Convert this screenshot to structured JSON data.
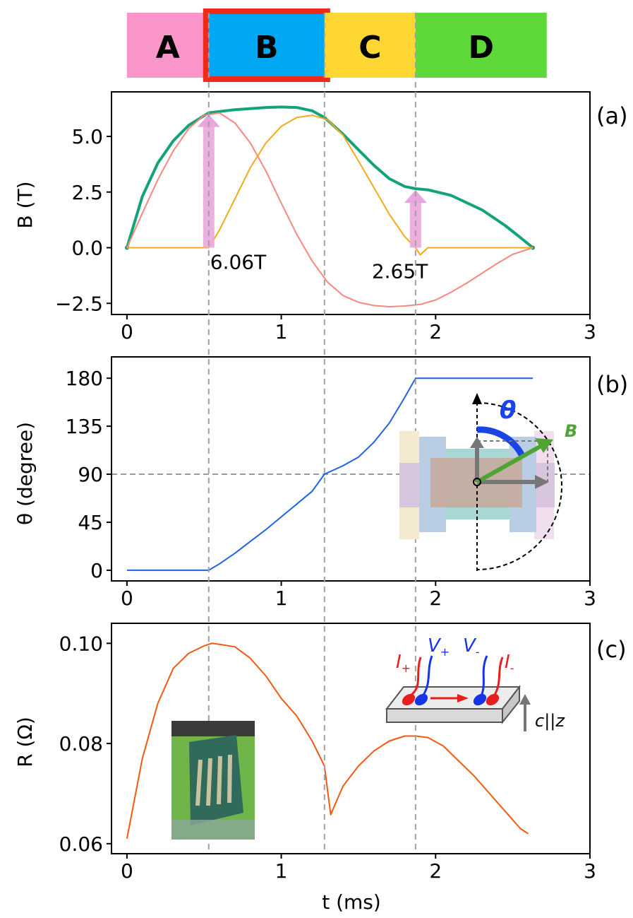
{
  "phase_bar": {
    "segments": [
      {
        "label": "A",
        "color": "#f995c9",
        "t_start": 0,
        "t_end": 0.53
      },
      {
        "label": "B",
        "color": "#00a8f3",
        "t_start": 0.53,
        "t_end": 1.28,
        "highlight": "#ee2a1a"
      },
      {
        "label": "C",
        "color": "#fed733",
        "t_start": 1.28,
        "t_end": 1.87
      },
      {
        "label": "D",
        "color": "#5fd83a",
        "t_start": 1.87,
        "t_end": 2.72
      }
    ]
  },
  "vlines_t": [
    0.53,
    1.28,
    1.87
  ],
  "xaxis_label": "t (ms)",
  "chart_data": [
    {
      "type": "line",
      "panel": "(a)",
      "ylabel": "B (T)",
      "xlim": [
        -0.1,
        3.0
      ],
      "ylim": [
        -3.0,
        7.0
      ],
      "xticks": [
        "0",
        "1",
        "2",
        "3"
      ],
      "yticks": [
        "5.0",
        "2.5",
        "0.0",
        "−2.5"
      ],
      "series": [
        {
          "color": "#13a37a",
          "x": [
            0,
            0.1,
            0.2,
            0.3,
            0.4,
            0.53,
            0.7,
            0.9,
            1.0,
            1.1,
            1.2,
            1.28,
            1.4,
            1.5,
            1.6,
            1.7,
            1.8,
            1.87,
            1.95,
            2.1,
            2.3,
            2.45,
            2.55,
            2.63
          ],
          "y": [
            0,
            2.3,
            3.8,
            4.8,
            5.5,
            6.06,
            6.2,
            6.3,
            6.32,
            6.3,
            6.15,
            5.85,
            5.1,
            4.4,
            3.7,
            3.1,
            2.75,
            2.65,
            2.6,
            2.35,
            1.7,
            1.0,
            0.45,
            0
          ]
        },
        {
          "color": "#f7877f",
          "x": [
            0,
            0.1,
            0.2,
            0.3,
            0.4,
            0.5,
            0.6,
            0.7,
            0.8,
            0.9,
            1.0,
            1.1,
            1.2,
            1.3,
            1.4,
            1.5,
            1.6,
            1.7,
            1.8,
            1.9,
            2.0,
            2.1,
            2.2,
            2.3,
            2.4,
            2.5,
            2.63
          ],
          "y": [
            0,
            1.55,
            3.05,
            4.35,
            5.35,
            5.95,
            6.05,
            5.6,
            4.7,
            3.45,
            2.0,
            0.6,
            -0.6,
            -1.55,
            -2.15,
            -2.45,
            -2.6,
            -2.65,
            -2.62,
            -2.55,
            -2.35,
            -2.0,
            -1.6,
            -1.15,
            -0.7,
            -0.3,
            0
          ]
        },
        {
          "color": "#f7a81b",
          "x": [
            0,
            0.3,
            0.53,
            0.6,
            0.7,
            0.8,
            0.9,
            1.0,
            1.1,
            1.2,
            1.3,
            1.4,
            1.5,
            1.6,
            1.7,
            1.8,
            1.87,
            1.9,
            1.95,
            2.1,
            2.3,
            2.5,
            2.63
          ],
          "y": [
            0,
            0,
            0,
            0.8,
            2.2,
            3.6,
            4.7,
            5.45,
            5.85,
            5.95,
            5.75,
            5.05,
            3.9,
            2.7,
            1.5,
            0.5,
            0,
            -0.32,
            0,
            0,
            0,
            0,
            0
          ]
        }
      ],
      "arrows": [
        {
          "t": 0.53,
          "from": 0,
          "to": 6.06,
          "label": "6.06T",
          "color": "#e9a6dd"
        },
        {
          "t": 1.87,
          "from": 0,
          "to": 2.65,
          "label": "2.65T",
          "color": "#e9a6dd"
        }
      ]
    },
    {
      "type": "line",
      "panel": "(b)",
      "ylabel": "θ (degree)",
      "xlim": [
        -0.1,
        3.0
      ],
      "ylim": [
        -10,
        200
      ],
      "xticks": [
        "0",
        "1",
        "2",
        "3"
      ],
      "yticks": [
        "180",
        "135",
        "90",
        "45",
        "0"
      ],
      "hline_y": 90,
      "series": [
        {
          "color": "#1e63e6",
          "x": [
            0,
            0.53,
            0.6,
            0.7,
            0.8,
            0.9,
            1.0,
            1.1,
            1.2,
            1.28,
            1.4,
            1.5,
            1.6,
            1.7,
            1.8,
            1.87,
            2.0,
            2.3,
            2.63
          ],
          "y": [
            0,
            0,
            6,
            16,
            27,
            38,
            50,
            62,
            74,
            90,
            98,
            106,
            120,
            138,
            162,
            180,
            180,
            180,
            180
          ]
        }
      ],
      "inset": {
        "theta_label": "θ",
        "vector_label": "B"
      }
    },
    {
      "type": "line",
      "panel": "(c)",
      "ylabel": "R (Ω)",
      "xlim": [
        -0.1,
        3.0
      ],
      "ylim": [
        0.058,
        0.104
      ],
      "xticks": [
        "0",
        "1",
        "2",
        "3"
      ],
      "yticks": [
        "0.10",
        "0.08",
        "0.06"
      ],
      "series": [
        {
          "color": "#f25a0f",
          "x": [
            0,
            0.05,
            0.1,
            0.2,
            0.3,
            0.4,
            0.5,
            0.55,
            0.6,
            0.7,
            0.8,
            0.9,
            1.0,
            1.1,
            1.2,
            1.28,
            1.32,
            1.4,
            1.5,
            1.6,
            1.7,
            1.8,
            1.87,
            1.95,
            2.05,
            2.15,
            2.25,
            2.35,
            2.45,
            2.55,
            2.6
          ],
          "y": [
            0.061,
            0.069,
            0.077,
            0.088,
            0.095,
            0.098,
            0.0995,
            0.1,
            0.0998,
            0.0993,
            0.097,
            0.0935,
            0.089,
            0.0855,
            0.0805,
            0.0755,
            0.0658,
            0.0715,
            0.0755,
            0.0785,
            0.0805,
            0.0815,
            0.0815,
            0.0812,
            0.0795,
            0.0765,
            0.0735,
            0.07,
            0.0665,
            0.063,
            0.062
          ]
        }
      ],
      "inset": {
        "current_plus": "I",
        "current_minus": "I",
        "voltage_plus": "V",
        "voltage_minus": "V",
        "sub_plus": "+",
        "sub_minus": "-",
        "axis_label": "c||z"
      }
    }
  ]
}
